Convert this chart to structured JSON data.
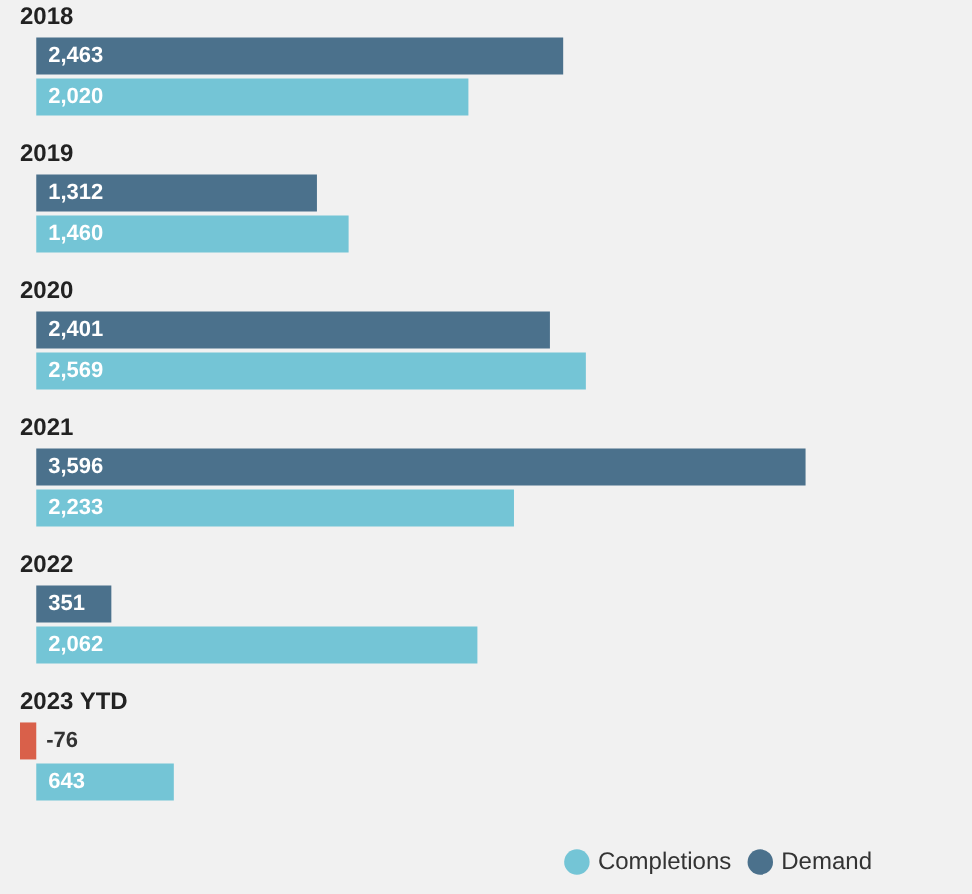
{
  "chart_data": {
    "type": "bar",
    "orientation": "horizontal",
    "categories": [
      "2018",
      "2019",
      "2020",
      "2021",
      "2022",
      "2023 YTD"
    ],
    "series": [
      {
        "name": "Demand",
        "color": "#4b718c",
        "colors": [
          "#4b718c",
          "#4b718c",
          "#4b718c",
          "#4b718c",
          "#4b718c",
          "#d9604a"
        ],
        "values": [
          2463,
          1312,
          2401,
          3596,
          351,
          -76
        ],
        "value_labels": [
          "2,463",
          "1,312",
          "2,401",
          "3,596",
          "351",
          "-76"
        ]
      },
      {
        "name": "Completions",
        "color": "#74c5d6",
        "values": [
          2020,
          1460,
          2569,
          2233,
          2062,
          643
        ],
        "value_labels": [
          "2,020",
          "1,460",
          "2,569",
          "2,233",
          "2,062",
          "643"
        ]
      }
    ],
    "legend": "bottom right"
  }
}
